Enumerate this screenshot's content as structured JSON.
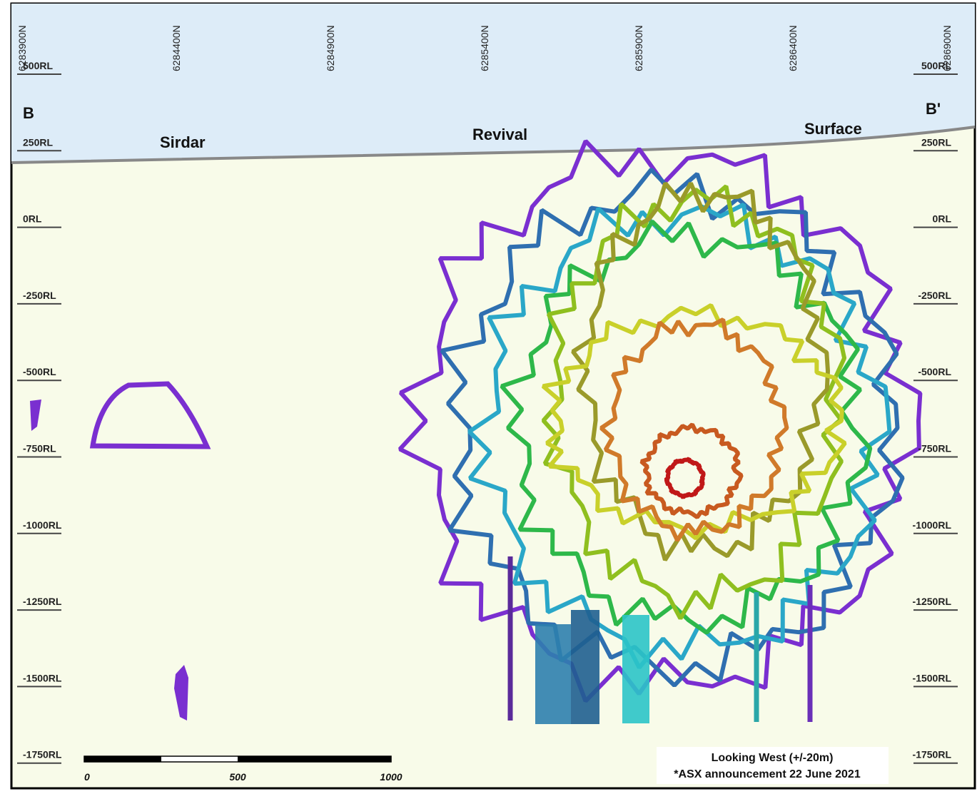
{
  "northings": [
    "6283900N",
    "6284400N",
    "6284900N",
    "6285400N",
    "6285900N",
    "6286400N",
    "6286900N"
  ],
  "rl_left": [
    "500RL",
    "250RL",
    "0RL",
    "-250RL",
    "-500RL",
    "-750RL",
    "-1000RL",
    "-1250RL",
    "-1500RL",
    "-1750RL"
  ],
  "rl_right": [
    "500RL",
    "250RL",
    "0RL",
    "-250RL",
    "-500RL",
    "-750RL",
    "-1000RL",
    "-1250RL",
    "-1500RL",
    "-1750RL"
  ],
  "section": {
    "start": "B",
    "end": "B'"
  },
  "places": {
    "sirdar": "Sirdar",
    "revival": "Revival",
    "surface": "Surface"
  },
  "scale_bar": {
    "labels": [
      0,
      500,
      1000
    ]
  },
  "caption": {
    "line1": "Looking West (+/-20m)",
    "line2": "*ASX announcement 22 June 2021"
  }
}
